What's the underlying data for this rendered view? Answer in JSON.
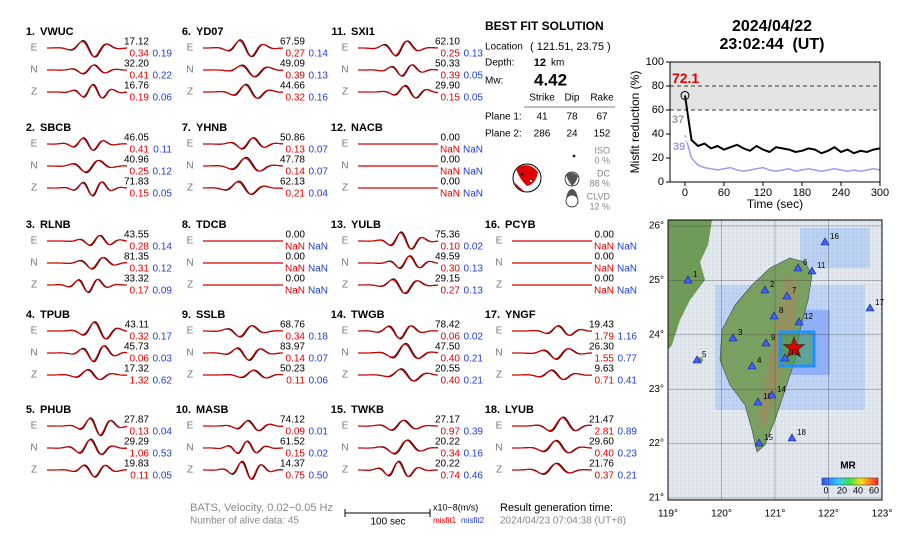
{
  "stations": [
    {
      "num": "1.",
      "name": "VWUC",
      "components": [
        {
          "comp": "E",
          "amplitude": "17.12",
          "misfit1": "0.34",
          "misfit2": "0.19"
        },
        {
          "comp": "N",
          "amplitude": "32.20",
          "misfit1": "0.41",
          "misfit2": "0.22"
        },
        {
          "comp": "Z",
          "amplitude": "16.76",
          "misfit1": "0.19",
          "misfit2": "0.06"
        }
      ]
    },
    {
      "num": "2.",
      "name": "SBCB",
      "components": [
        {
          "comp": "E",
          "amplitude": "46.05",
          "misfit1": "0.41",
          "misfit2": "0.11"
        },
        {
          "comp": "N",
          "amplitude": "40.96",
          "misfit1": "0.25",
          "misfit2": "0.12"
        },
        {
          "comp": "Z",
          "amplitude": "71.83",
          "misfit1": "0.15",
          "misfit2": "0.05"
        }
      ]
    },
    {
      "num": "3.",
      "name": "RLNB",
      "components": [
        {
          "comp": "E",
          "amplitude": "43.55",
          "misfit1": "0.28",
          "misfit2": "0.14"
        },
        {
          "comp": "N",
          "amplitude": "81.35",
          "misfit1": "0.31",
          "misfit2": "0.12"
        },
        {
          "comp": "Z",
          "amplitude": "33.32",
          "misfit1": "0.17",
          "misfit2": "0.09"
        }
      ]
    },
    {
      "num": "4.",
      "name": "TPUB",
      "components": [
        {
          "comp": "E",
          "amplitude": "43.11",
          "misfit1": "0.32",
          "misfit2": "0.17"
        },
        {
          "comp": "N",
          "amplitude": "45.73",
          "misfit1": "0.06",
          "misfit2": "0.03"
        },
        {
          "comp": "Z",
          "amplitude": "17.32",
          "misfit1": "1.32",
          "misfit2": "0.62"
        }
      ]
    },
    {
      "num": "5.",
      "name": "PHUB",
      "components": [
        {
          "comp": "E",
          "amplitude": "27.87",
          "misfit1": "0.13",
          "misfit2": "0.04"
        },
        {
          "comp": "N",
          "amplitude": "29.29",
          "misfit1": "1.06",
          "misfit2": "0.53"
        },
        {
          "comp": "Z",
          "amplitude": "19.83",
          "misfit1": "0.11",
          "misfit2": "0.05"
        }
      ]
    },
    {
      "num": "6.",
      "name": "YD07",
      "components": [
        {
          "comp": "E",
          "amplitude": "67.59",
          "misfit1": "0.27",
          "misfit2": "0.14"
        },
        {
          "comp": "N",
          "amplitude": "49.09",
          "misfit1": "0.39",
          "misfit2": "0.13"
        },
        {
          "comp": "Z",
          "amplitude": "44.66",
          "misfit1": "0.32",
          "misfit2": "0.16"
        }
      ]
    },
    {
      "num": "7.",
      "name": "YHNB",
      "components": [
        {
          "comp": "E",
          "amplitude": "50.86",
          "misfit1": "0.13",
          "misfit2": "0.07"
        },
        {
          "comp": "N",
          "amplitude": "47.78",
          "misfit1": "0.14",
          "misfit2": "0.07"
        },
        {
          "comp": "Z",
          "amplitude": "62.13",
          "misfit1": "0.21",
          "misfit2": "0.04"
        }
      ]
    },
    {
      "num": "8.",
      "name": "TDCB",
      "components": [
        {
          "comp": "E",
          "amplitude": "0.00",
          "misfit1": "NaN",
          "misfit2": "NaN"
        },
        {
          "comp": "N",
          "amplitude": "0.00",
          "misfit1": "NaN",
          "misfit2": "NaN"
        },
        {
          "comp": "Z",
          "amplitude": "0.00",
          "misfit1": "NaN",
          "misfit2": "NaN"
        }
      ]
    },
    {
      "num": "9.",
      "name": "SSLB",
      "components": [
        {
          "comp": "E",
          "amplitude": "68.76",
          "misfit1": "0.34",
          "misfit2": "0.18"
        },
        {
          "comp": "N",
          "amplitude": "83.97",
          "misfit1": "0.14",
          "misfit2": "0.07"
        },
        {
          "comp": "Z",
          "amplitude": "50.23",
          "misfit1": "0.11",
          "misfit2": "0.06"
        }
      ]
    },
    {
      "num": "10.",
      "name": "MASB",
      "components": [
        {
          "comp": "E",
          "amplitude": "74.12",
          "misfit1": "0.09",
          "misfit2": "0.01"
        },
        {
          "comp": "N",
          "amplitude": "61.52",
          "misfit1": "0.15",
          "misfit2": "0.02"
        },
        {
          "comp": "Z",
          "amplitude": "14.37",
          "misfit1": "0.75",
          "misfit2": "0.50"
        }
      ]
    },
    {
      "num": "11.",
      "name": "SXI1",
      "components": [
        {
          "comp": "E",
          "amplitude": "62.10",
          "misfit1": "0.25",
          "misfit2": "0.13"
        },
        {
          "comp": "N",
          "amplitude": "50.33",
          "misfit1": "0.39",
          "misfit2": "0.05"
        },
        {
          "comp": "Z",
          "amplitude": "29.90",
          "misfit1": "0.15",
          "misfit2": "0.05"
        }
      ]
    },
    {
      "num": "12.",
      "name": "NACB",
      "components": [
        {
          "comp": "E",
          "amplitude": "0.00",
          "misfit1": "NaN",
          "misfit2": "NaN"
        },
        {
          "comp": "N",
          "amplitude": "0.00",
          "misfit1": "NaN",
          "misfit2": "NaN"
        },
        {
          "comp": "Z",
          "amplitude": "0.00",
          "misfit1": "NaN",
          "misfit2": "NaN"
        }
      ]
    },
    {
      "num": "13.",
      "name": "YULB",
      "components": [
        {
          "comp": "E",
          "amplitude": "75.36",
          "misfit1": "0.10",
          "misfit2": "0.02"
        },
        {
          "comp": "N",
          "amplitude": "49.59",
          "misfit1": "0.30",
          "misfit2": "0.13"
        },
        {
          "comp": "Z",
          "amplitude": "29.15",
          "misfit1": "0.27",
          "misfit2": "0.13"
        }
      ]
    },
    {
      "num": "14.",
      "name": "TWGB",
      "components": [
        {
          "comp": "E",
          "amplitude": "78.42",
          "misfit1": "0.06",
          "misfit2": "0.02"
        },
        {
          "comp": "N",
          "amplitude": "47.50",
          "misfit1": "0.40",
          "misfit2": "0.21"
        },
        {
          "comp": "Z",
          "amplitude": "20.55",
          "misfit1": "0.40",
          "misfit2": "0.21"
        }
      ]
    },
    {
      "num": "15.",
      "name": "TWKB",
      "components": [
        {
          "comp": "E",
          "amplitude": "27.17",
          "misfit1": "0.97",
          "misfit2": "0.39"
        },
        {
          "comp": "N",
          "amplitude": "20.22",
          "misfit1": "0.34",
          "misfit2": "0.16"
        },
        {
          "comp": "Z",
          "amplitude": "20.22",
          "misfit1": "0.74",
          "misfit2": "0.46"
        }
      ]
    },
    {
      "num": "16.",
      "name": "PCYB",
      "components": [
        {
          "comp": "E",
          "amplitude": "0.00",
          "misfit1": "NaN",
          "misfit2": "NaN"
        },
        {
          "comp": "N",
          "amplitude": "0.00",
          "misfit1": "NaN",
          "misfit2": "NaN"
        },
        {
          "comp": "Z",
          "amplitude": "0.00",
          "misfit1": "NaN",
          "misfit2": "NaN"
        }
      ]
    },
    {
      "num": "17.",
      "name": "YNGF",
      "components": [
        {
          "comp": "E",
          "amplitude": "19.43",
          "misfit1": "1.79",
          "misfit2": "1.16"
        },
        {
          "comp": "N",
          "amplitude": "26.30",
          "misfit1": "1.55",
          "misfit2": "0.77"
        },
        {
          "comp": "Z",
          "amplitude": "9.63",
          "misfit1": "0.71",
          "misfit2": "0.41"
        }
      ]
    },
    {
      "num": "18.",
      "name": "LYUB",
      "components": [
        {
          "comp": "E",
          "amplitude": "21.47",
          "misfit1": "2.81",
          "misfit2": "0.89"
        },
        {
          "comp": "N",
          "amplitude": "29.60",
          "misfit1": "0.40",
          "misfit2": "0.23"
        },
        {
          "comp": "Z",
          "amplitude": "21.76",
          "misfit1": "0.37",
          "misfit2": "0.21"
        }
      ]
    }
  ],
  "solution": {
    "title": "BEST FIT SOLUTION",
    "location_label": "Location",
    "location": "( 121.51, 23.75 )",
    "depth_label": "Depth:",
    "depth": "12",
    "depth_unit": "km",
    "mw_label": "Mw:",
    "mw": "4.42",
    "plane_headers": [
      "Strike",
      "Dip",
      "Rake"
    ],
    "planes": [
      {
        "label": "Plane 1:",
        "values": [
          "41",
          "78",
          "67"
        ]
      },
      {
        "label": "Plane 2:",
        "values": [
          "286",
          "24",
          "152"
        ]
      }
    ],
    "components": [
      {
        "label": "ISO",
        "percent": "0 %"
      },
      {
        "label": "DC",
        "percent": "88 %"
      },
      {
        "label": "CLVD",
        "percent": "12 %"
      }
    ]
  },
  "header": {
    "date": "2024/04/22",
    "time": "23:02:44  (UT)"
  },
  "chart_data": {
    "type": "line",
    "x_label": "Time (sec)",
    "y_label": "Misfit reduction (%)",
    "x": [
      0,
      10,
      20,
      30,
      40,
      50,
      60,
      70,
      80,
      90,
      100,
      110,
      120,
      130,
      140,
      150,
      160,
      170,
      180,
      190,
      200,
      210,
      220,
      230,
      240,
      250,
      260,
      270,
      280,
      290,
      300
    ],
    "series": [
      {
        "color": "#000000",
        "values": [
          72.1,
          35,
          30,
          32,
          28,
          30,
          27,
          29,
          31,
          28,
          26,
          30,
          27,
          25,
          29,
          28,
          27,
          25,
          26,
          28,
          27,
          24,
          26,
          29,
          25,
          27,
          24,
          26,
          25,
          27,
          28
        ]
      },
      {
        "color": "#ffffff",
        "values": [
          37,
          30,
          26,
          27,
          25,
          26,
          24,
          25,
          26,
          24,
          23,
          25,
          23,
          22,
          24,
          23,
          22,
          21,
          22,
          23,
          22,
          20,
          21,
          23,
          21,
          22,
          20,
          21,
          20,
          22,
          21
        ]
      },
      {
        "color": "#9c9cf0",
        "values": [
          39,
          20,
          14,
          12,
          11,
          10,
          11,
          12,
          10,
          9,
          10,
          11,
          12,
          10,
          9,
          10,
          11,
          9,
          10,
          11,
          10,
          9,
          10,
          11,
          10,
          9,
          10,
          9,
          10,
          11,
          10
        ]
      }
    ],
    "annotations": [
      {
        "text": "72.1",
        "color": "#e00000"
      },
      {
        "text": "37",
        "color": "#999999"
      },
      {
        "text": "39",
        "color": "#9c9cf0"
      }
    ],
    "xlim": [
      -23,
      300
    ],
    "ylim": [
      0,
      100
    ],
    "xticks": [
      0,
      60,
      120,
      180,
      240,
      300
    ],
    "yticks": [
      0,
      20,
      40,
      60,
      80,
      100
    ],
    "shade_above": 60,
    "reference_lines": [
      60,
      80
    ]
  },
  "map": {
    "lon_labels": [
      "119°",
      "120°",
      "121°",
      "122°",
      "123°"
    ],
    "lat_labels": [
      "21°",
      "22°",
      "23°",
      "24°",
      "25°",
      "26°"
    ],
    "station_labels": [
      "1",
      "2",
      "3",
      "4",
      "5",
      "6",
      "7",
      "8",
      "9",
      "10",
      "11",
      "12",
      "13",
      "14",
      "15",
      "16",
      "17",
      "18"
    ],
    "colorbar_title": "MR",
    "colorbar_ticks": [
      "0",
      "20",
      "40",
      "60"
    ]
  },
  "footer": {
    "network": "BATS, Velocity, 0.02−0.05 Hz",
    "alive": "Number of alive data: 45",
    "scale": "100 sec",
    "unit": "x10−8(m/s)",
    "misfit1": "misfit1",
    "misfit2": "misfit2",
    "result_label": "Result generation time:",
    "result_time": "2024/04/23 07:04:38 (UT+8)"
  }
}
